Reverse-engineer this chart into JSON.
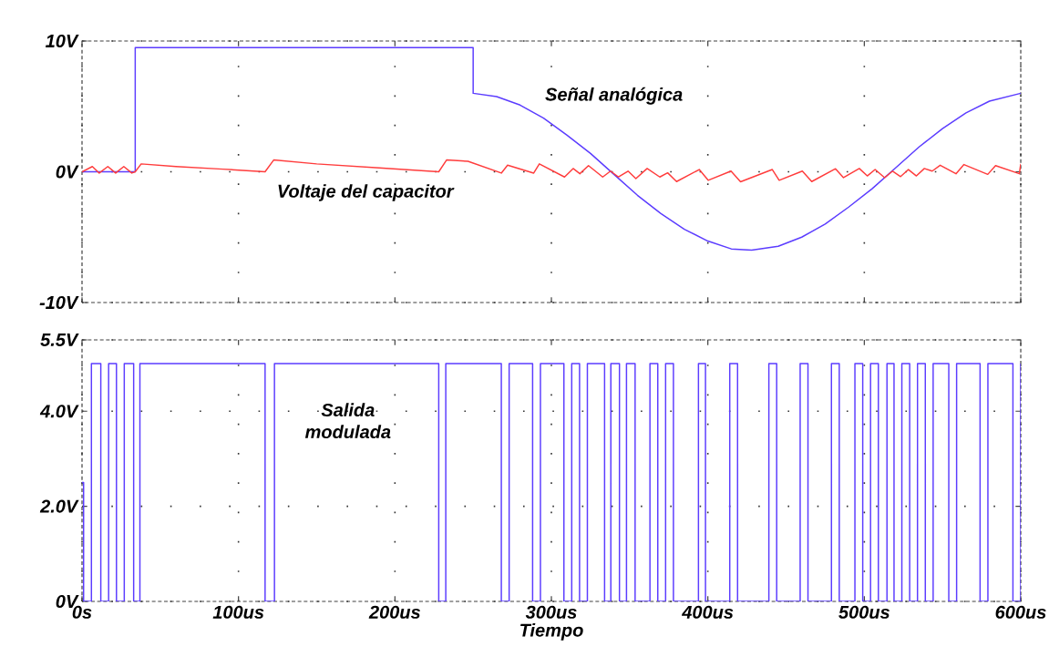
{
  "chart_data": [
    {
      "type": "line",
      "xlim": [
        0,
        600
      ],
      "ylim": [
        -10,
        10
      ],
      "tick_labels": "y",
      "grid": true,
      "xticks": [
        {
          "value": 0,
          "label": null
        },
        {
          "value": 100,
          "label": null
        },
        {
          "value": 200,
          "label": null
        },
        {
          "value": 300,
          "label": null
        },
        {
          "value": 400,
          "label": null
        },
        {
          "value": 500,
          "label": null
        },
        {
          "value": 600,
          "label": null
        }
      ],
      "yticks": [
        {
          "value": -10,
          "label": "-10V"
        },
        {
          "value": 0,
          "label": "0V"
        },
        {
          "value": 10,
          "label": "10V"
        }
      ],
      "series": [
        {
          "name": "Señal analógica",
          "color": "#5b3cff",
          "x": [
            0,
            34,
            34,
            250,
            250,
            265,
            280,
            295,
            310,
            325,
            340,
            355,
            370,
            385,
            400,
            415,
            428,
            445,
            460,
            475,
            490,
            505,
            520,
            535,
            550,
            565,
            580,
            600
          ],
          "values": [
            0,
            0,
            9.5,
            9.5,
            6.0,
            5.75,
            5.1,
            4.1,
            2.8,
            1.4,
            -0.2,
            -1.8,
            -3.2,
            -4.4,
            -5.3,
            -5.9,
            -6.0,
            -5.7,
            -5.0,
            -4.0,
            -2.7,
            -1.3,
            0.3,
            1.9,
            3.3,
            4.5,
            5.4,
            6.0
          ]
        },
        {
          "name": "Voltaje del capacitor",
          "color": "#ff3c3c",
          "x": [
            0,
            6.6,
            11,
            16.5,
            21.5,
            26.7,
            31.8,
            34,
            37.8,
            60,
            90,
            117,
            122.5,
            150,
            190,
            228,
            233,
            246.7,
            268,
            272,
            288.7,
            292.3,
            308.4,
            313.9,
            318.2,
            323.7,
            332.8,
            337.8,
            342.9,
            349,
            354,
            361.2,
            369.3,
            374.3,
            380,
            394.5,
            400.2,
            414.8,
            420.9,
            441.2,
            445.6,
            460.4,
            466.4,
            481.6,
            486.7,
            496.8,
            501.9,
            506.9,
            513,
            518.1,
            523.2,
            528.2,
            533.3,
            538.4,
            543.4,
            548.5,
            558.6,
            563.7,
            578.9,
            583.9,
            599.1,
            600
          ],
          "values": [
            0,
            0.4,
            -0.1,
            0.4,
            -0.1,
            0.4,
            -0.1,
            0,
            0.6,
            0.4,
            0.2,
            0.0,
            0.9,
            0.6,
            0.3,
            0.0,
            0.9,
            0.8,
            -0.1,
            0.5,
            -0.1,
            0.6,
            -0.4,
            0.25,
            -0.15,
            0.47,
            -0.4,
            0.05,
            -0.4,
            0.05,
            -0.52,
            0.25,
            -0.4,
            -0.08,
            -0.75,
            0.17,
            -0.65,
            0.05,
            -0.77,
            0.17,
            -0.65,
            0.05,
            -0.75,
            0.23,
            -0.45,
            0.25,
            -0.32,
            0.17,
            -0.45,
            0.05,
            -0.37,
            0.17,
            -0.32,
            0.25,
            0.05,
            0.5,
            -0.15,
            0.55,
            -0.2,
            0.47,
            -0.15,
            0.6
          ]
        }
      ]
    },
    {
      "type": "step",
      "xlabel": "Tiempo",
      "xlim": [
        0,
        600
      ],
      "ylim": [
        0,
        5.5
      ],
      "grid": true,
      "xticks": [
        {
          "value": 0,
          "label": "0s"
        },
        {
          "value": 100,
          "label": "100us"
        },
        {
          "value": 200,
          "label": "200us"
        },
        {
          "value": 300,
          "label": "300us"
        },
        {
          "value": 400,
          "label": "400us"
        },
        {
          "value": 500,
          "label": "500us"
        },
        {
          "value": 600,
          "label": "600us"
        }
      ],
      "yticks": [
        {
          "value": 0,
          "label": "0V"
        },
        {
          "value": 2,
          "label": "2.0V"
        },
        {
          "value": 4,
          "label": "4.0V"
        },
        {
          "value": 5.5,
          "label": "5.5V"
        }
      ],
      "series": [
        {
          "name": "Salida modulada",
          "color": "#5b3cff",
          "x": [
            0,
            1,
            6,
            12,
            17,
            22,
            27,
            33,
            37,
            117,
            123,
            228,
            232.5,
            268,
            273,
            288,
            293,
            308,
            313,
            318,
            323,
            334,
            338,
            343.5,
            348,
            353.5,
            363,
            368,
            373,
            378,
            394,
            398.5,
            414,
            419,
            439,
            444,
            459,
            464,
            479,
            484,
            494,
            499,
            504,
            509,
            514.5,
            519,
            524,
            529,
            534,
            539,
            544,
            554,
            559,
            574,
            579,
            595,
            600
          ],
          "values": [
            2.5,
            0,
            5,
            0,
            5,
            0,
            5,
            0,
            5,
            0,
            5,
            0,
            5,
            0,
            5,
            0,
            5,
            0,
            5,
            0,
            5,
            0,
            5,
            0,
            5,
            0,
            5,
            0,
            5,
            0,
            5,
            0,
            5,
            0,
            5,
            0,
            5,
            0,
            5,
            0,
            5,
            0,
            5,
            0,
            5,
            0,
            5,
            0,
            5,
            0,
            5,
            0,
            5,
            0,
            5,
            0,
            5
          ]
        }
      ]
    }
  ]
}
